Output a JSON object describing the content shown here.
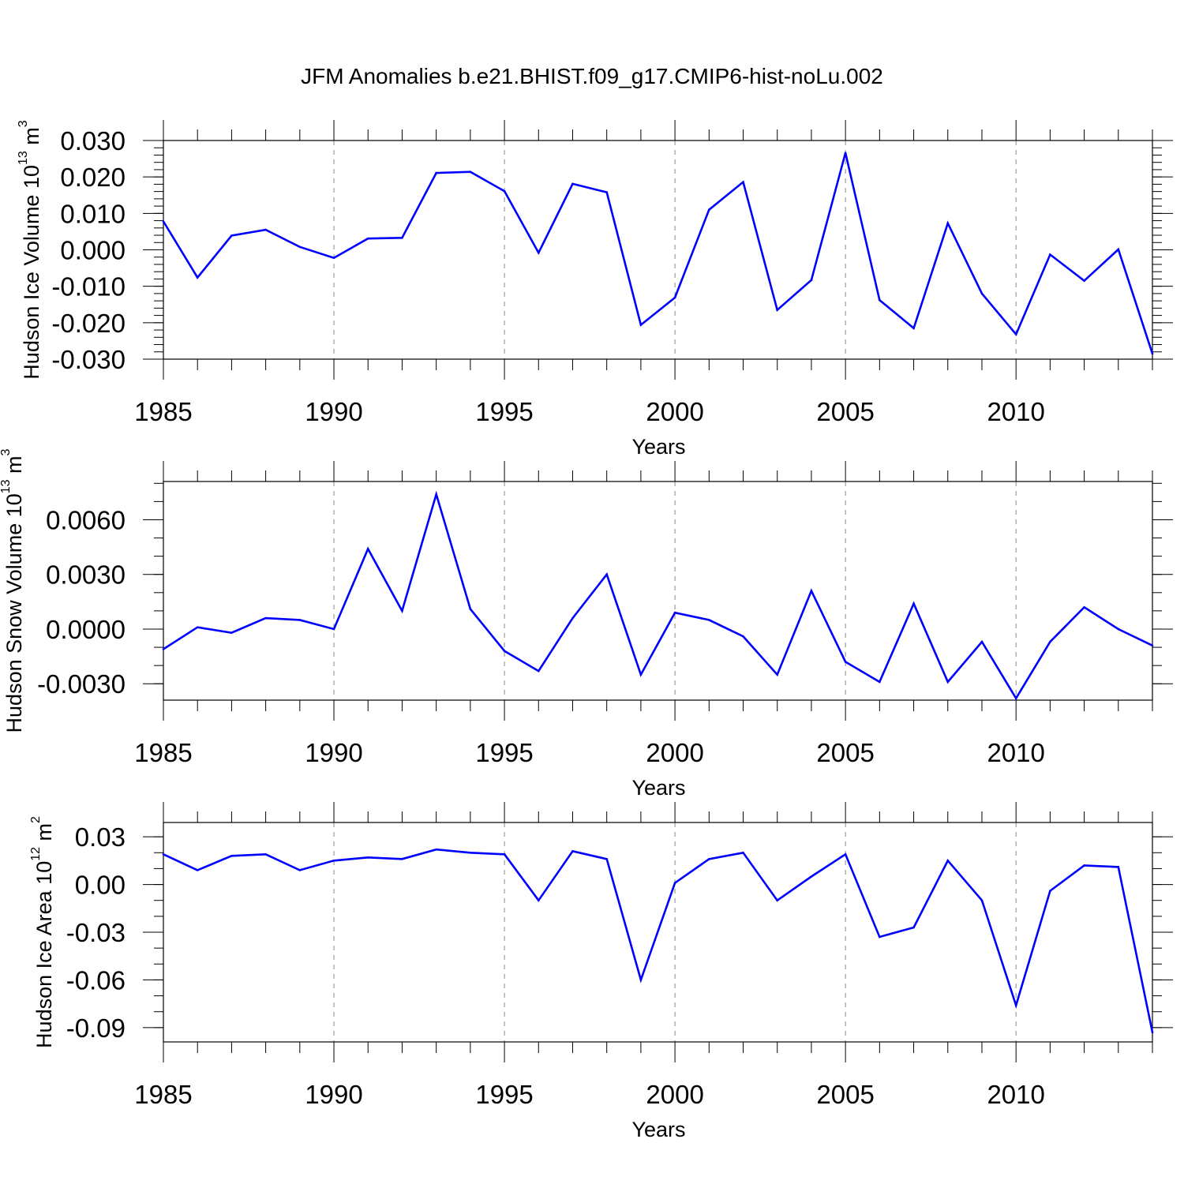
{
  "title": "JFM Anomalies b.e21.BHIST.f09_g17.CMIP6-hist-noLu.002",
  "chart_data": [
    {
      "type": "line",
      "ylabel": "Hudson Ice Volume 10",
      "ylabel_exp": "13",
      "ylabel_unit": " m",
      "ylabel_unit_exp": "3",
      "xlabel": "Years",
      "xlim": [
        1985,
        2014
      ],
      "ylim": [
        -0.03,
        0.03
      ],
      "yticks": [
        -0.03,
        -0.02,
        -0.01,
        0.0,
        0.01,
        0.02,
        0.03
      ],
      "yticklabels": [
        "-0.030",
        "-0.020",
        "-0.010",
        "0.000",
        "0.010",
        "0.020",
        "0.030"
      ],
      "yminor": 0.002,
      "xticks": [
        1985,
        1990,
        1995,
        2000,
        2005,
        2010
      ],
      "xticklabels": [
        "1985",
        "1990",
        "1995",
        "2000",
        "2005",
        "2010"
      ],
      "gridlines_x": [
        1990,
        1995,
        2000,
        2005,
        2010
      ],
      "series": [
        {
          "name": "ice-volume",
          "color": "#0000ff",
          "x": [
            1985,
            1986,
            1987,
            1988,
            1989,
            1990,
            1991,
            1992,
            1993,
            1994,
            1995,
            1996,
            1997,
            1998,
            1999,
            2000,
            2001,
            2002,
            2003,
            2004,
            2005,
            2006,
            2007,
            2008,
            2009,
            2010,
            2011,
            2012,
            2013,
            2014
          ],
          "values": [
            0.0078,
            -0.0076,
            0.0039,
            0.0055,
            0.0008,
            -0.0022,
            0.0031,
            0.0033,
            0.0211,
            0.0214,
            0.0161,
            -0.0008,
            0.0181,
            0.0158,
            -0.0206,
            -0.0131,
            0.011,
            0.0186,
            -0.0165,
            -0.0083,
            0.0266,
            -0.0138,
            -0.0215,
            0.0073,
            -0.012,
            -0.0232,
            -0.0013,
            -0.0085,
            0.0001,
            -0.0285
          ]
        }
      ]
    },
    {
      "type": "line",
      "ylabel": "Hudson Snow Volume 10",
      "ylabel_exp": "13",
      "ylabel_unit": " m",
      "ylabel_unit_exp": "3",
      "xlabel": "Years",
      "xlim": [
        1985,
        2014
      ],
      "ylim": [
        -0.0039,
        0.0081
      ],
      "yticks": [
        -0.003,
        0.0,
        0.003,
        0.006
      ],
      "yticklabels": [
        "-0.0030",
        "0.0000",
        "0.0030",
        "0.0060"
      ],
      "yminor": 0.001,
      "xticks": [
        1985,
        1990,
        1995,
        2000,
        2005,
        2010
      ],
      "xticklabels": [
        "1985",
        "1990",
        "1995",
        "2000",
        "2005",
        "2010"
      ],
      "gridlines_x": [
        1990,
        1995,
        2000,
        2005,
        2010
      ],
      "series": [
        {
          "name": "snow-volume",
          "color": "#0000ff",
          "x": [
            1985,
            1986,
            1987,
            1988,
            1989,
            1990,
            1991,
            1992,
            1993,
            1994,
            1995,
            1996,
            1997,
            1998,
            1999,
            2000,
            2001,
            2002,
            2003,
            2004,
            2005,
            2006,
            2007,
            2008,
            2009,
            2010,
            2011,
            2012,
            2013,
            2014
          ],
          "values": [
            -0.0011,
            0.0001,
            -0.0002,
            0.0006,
            0.0005,
            0.0,
            0.0044,
            0.001,
            0.0074,
            0.0011,
            -0.0012,
            -0.0023,
            0.0006,
            0.003,
            -0.0025,
            0.0009,
            0.0005,
            -0.0004,
            -0.0025,
            0.0021,
            -0.0018,
            -0.0029,
            0.0014,
            -0.0029,
            -0.0007,
            -0.0038,
            -0.0007,
            0.0012,
            0.0,
            -0.0009
          ]
        }
      ]
    },
    {
      "type": "line",
      "ylabel": "Hudson Ice Area 10",
      "ylabel_exp": "12",
      "ylabel_unit": " m",
      "ylabel_unit_exp": "2",
      "xlabel": "Years",
      "xlim": [
        1985,
        2014
      ],
      "ylim": [
        -0.099,
        0.039
      ],
      "yticks": [
        -0.09,
        -0.06,
        -0.03,
        0.0,
        0.03
      ],
      "yticklabels": [
        "-0.09",
        "-0.06",
        "-0.03",
        "0.00",
        "0.03"
      ],
      "yminor": 0.01,
      "xticks": [
        1985,
        1990,
        1995,
        2000,
        2005,
        2010
      ],
      "xticklabels": [
        "1985",
        "1990",
        "1995",
        "2000",
        "2005",
        "2010"
      ],
      "gridlines_x": [
        1990,
        1995,
        2000,
        2005,
        2010
      ],
      "series": [
        {
          "name": "ice-area",
          "color": "#0000ff",
          "x": [
            1985,
            1986,
            1987,
            1988,
            1989,
            1990,
            1991,
            1992,
            1993,
            1994,
            1995,
            1996,
            1997,
            1998,
            1999,
            2000,
            2001,
            2002,
            2003,
            2004,
            2005,
            2006,
            2007,
            2008,
            2009,
            2010,
            2011,
            2012,
            2013,
            2014
          ],
          "values": [
            0.019,
            0.009,
            0.018,
            0.019,
            0.009,
            0.015,
            0.017,
            0.016,
            0.022,
            0.02,
            0.019,
            -0.01,
            0.021,
            0.016,
            -0.06,
            0.001,
            0.016,
            0.02,
            -0.01,
            0.005,
            0.019,
            -0.033,
            -0.027,
            0.015,
            -0.01,
            -0.076,
            -0.004,
            0.012,
            0.011,
            -0.093
          ]
        }
      ]
    }
  ]
}
